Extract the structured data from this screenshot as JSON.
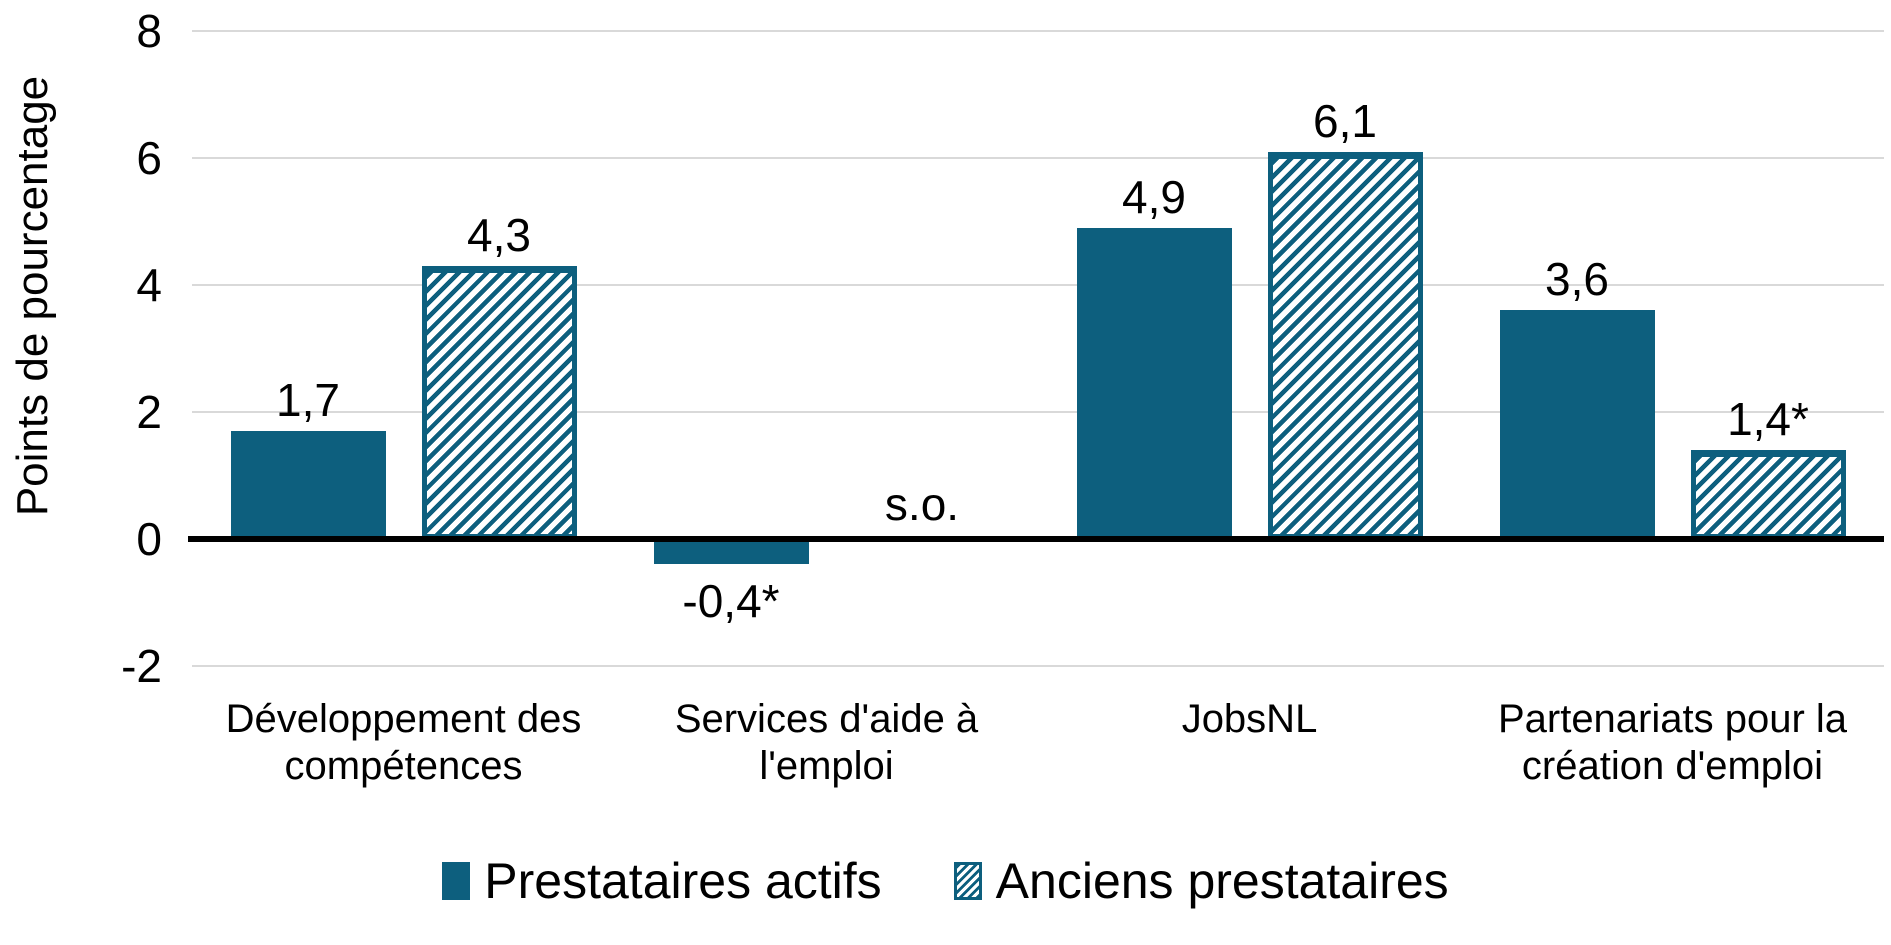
{
  "chart_data": {
    "type": "bar",
    "title": "",
    "ylabel": "Points de pourcentage",
    "xlabel": "",
    "categories": [
      "Développement des compétences",
      "Services d'aide à l'emploi",
      "JobsNL",
      "Partenariats pour la création d'emploi"
    ],
    "series": [
      {
        "name": "Prestataires actifs",
        "pattern": "solid",
        "values": [
          1.7,
          -0.4,
          4.9,
          3.6
        ],
        "value_labels": [
          "1,7",
          "-0,4*",
          "4,9",
          "3,6"
        ]
      },
      {
        "name": "Anciens prestataires",
        "pattern": "hatched",
        "values": [
          4.3,
          null,
          6.1,
          1.4
        ],
        "value_labels": [
          "4,3",
          "s.o.",
          "6,1",
          "1,4*"
        ]
      }
    ],
    "na_label": "s.o.",
    "yticks": [
      8,
      6,
      4,
      2,
      0,
      -2
    ],
    "ylim": [
      -2.6,
      8
    ],
    "grid": true,
    "legend_position": "bottom",
    "colors": {
      "bar": "#0d5f7e",
      "gridline": "#d9d9d9",
      "axis": "#000000",
      "background": "#ffffff"
    }
  }
}
